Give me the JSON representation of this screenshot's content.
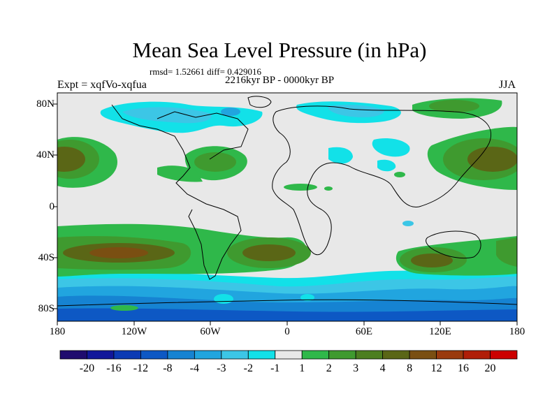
{
  "title": "Mean Sea Level Pressure (in hPa)",
  "stats": "rmsd= 1.52661 diff= 0.429016",
  "period": "2216kyr BP - 0000kyr BP",
  "experiment": "Expt = xqfVo-xqfua",
  "season": "JJA",
  "lat_ticks": [
    "80N",
    "40N",
    "0",
    "40S",
    "80S"
  ],
  "lon_ticks": [
    "180",
    "120W",
    "60W",
    "0",
    "60E",
    "120E",
    "180"
  ],
  "colorbar": {
    "colors": [
      "#1f0c6e",
      "#11179a",
      "#0b3ab4",
      "#0d58c4",
      "#1683d2",
      "#21a5df",
      "#3cc6e6",
      "#12e1e8",
      "#e8e8e8",
      "#2fb84a",
      "#3f9a2f",
      "#4c7e20",
      "#5a6616",
      "#7a4f12",
      "#9a3a0e",
      "#b01e08",
      "#cc0000"
    ],
    "labels": [
      "-20",
      "-16",
      "-12",
      "-8",
      "-4",
      "-3",
      "-2",
      "-1",
      "1",
      "2",
      "3",
      "4",
      "8",
      "12",
      "16",
      "20"
    ]
  },
  "map_colors": {
    "background": "#e8e8e8",
    "pos_light": "#2fb84a",
    "pos_mid": "#3f9a2f",
    "pos_dark": "#5a6616",
    "pos_max": "#7a4f12",
    "neg_1": "#12e1e8",
    "neg_2": "#3cc6e6",
    "neg_3": "#21a5df",
    "neg_4": "#1683d2",
    "neg_5": "#0d58c4",
    "coast": "#000000"
  }
}
